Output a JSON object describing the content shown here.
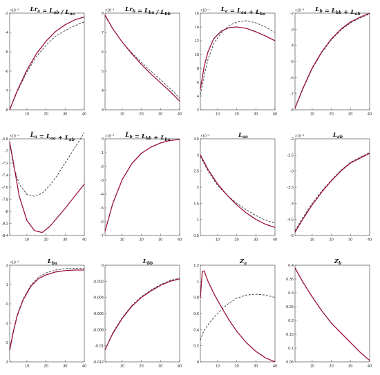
{
  "colors": {
    "solid": "#9a1237",
    "dashed": "#333333"
  },
  "chart_data": [
    {
      "type": "line",
      "title": "Lr_a = L_ab / L_aa",
      "exponent": "×10⁻³",
      "xlim": [
        1,
        40
      ],
      "ylim": [
        -8,
        -3
      ],
      "xticks": [
        "10",
        "20",
        "30",
        "40"
      ],
      "yticks": [
        "-8",
        "-7",
        "-6",
        "-5",
        "-4",
        "-3"
      ],
      "x": [
        1,
        5,
        10,
        15,
        20,
        25,
        30,
        35,
        40
      ],
      "series": [
        {
          "style": "solid",
          "values": [
            -8.0,
            -7.0,
            -5.95,
            -5.1,
            -4.45,
            -3.95,
            -3.6,
            -3.35,
            -3.2
          ]
        },
        {
          "style": "dashed",
          "values": [
            -8.0,
            -7.05,
            -6.05,
            -5.25,
            -4.65,
            -4.2,
            -3.9,
            -3.65,
            -3.45
          ]
        }
      ]
    },
    {
      "type": "line",
      "title": "Lr_b = L_ba / L_bb",
      "exponent": "×10⁻³",
      "xlim": [
        1,
        40
      ],
      "ylim": [
        3,
        8
      ],
      "xticks": [
        "10",
        "20",
        "30",
        "40"
      ],
      "yticks": [
        "3",
        "4",
        "5",
        "6",
        "7",
        "8"
      ],
      "x": [
        1,
        5,
        10,
        15,
        20,
        25,
        30,
        35,
        40
      ],
      "series": [
        {
          "style": "solid",
          "values": [
            7.9,
            7.2,
            6.5,
            5.9,
            5.35,
            4.85,
            4.4,
            3.95,
            3.45
          ]
        },
        {
          "style": "dashed",
          "values": [
            7.85,
            7.2,
            6.5,
            5.95,
            5.45,
            5.0,
            4.55,
            4.1,
            3.6
          ]
        }
      ]
    },
    {
      "type": "line",
      "title": "L_a = L_aa + L_ba",
      "exponent": "×10⁻⁴",
      "xlim": [
        1,
        40
      ],
      "ylim": [
        2,
        16
      ],
      "xticks": [
        "10",
        "20",
        "30",
        "40"
      ],
      "yticks": [
        "2",
        "4",
        "6",
        "8",
        "10",
        "12",
        "14",
        "16"
      ],
      "x": [
        1,
        3,
        5,
        8,
        12,
        16,
        20,
        25,
        30,
        35,
        40
      ],
      "series": [
        {
          "style": "solid",
          "values": [
            5.0,
            8.3,
            10.4,
            12.3,
            13.4,
            13.9,
            14.0,
            13.8,
            13.3,
            12.7,
            12.0
          ]
        },
        {
          "style": "dashed",
          "values": [
            4.2,
            7.0,
            9.3,
            11.6,
            13.2,
            14.2,
            14.7,
            14.9,
            14.6,
            14.0,
            13.2
          ]
        }
      ]
    },
    {
      "type": "line",
      "title": "L_b = L_bb + L_ab",
      "exponent": "×10⁻³",
      "xlim": [
        1,
        40
      ],
      "ylim": [
        -8,
        -2
      ],
      "xticks": [
        "10",
        "20",
        "30",
        "40"
      ],
      "yticks": [
        "-8",
        "-7",
        "-6",
        "-5",
        "-4",
        "-3",
        "-2"
      ],
      "x": [
        1,
        5,
        10,
        15,
        20,
        25,
        30,
        35,
        40
      ],
      "series": [
        {
          "style": "solid",
          "values": [
            -7.9,
            -6.7,
            -5.4,
            -4.4,
            -3.6,
            -3.0,
            -2.55,
            -2.25,
            -2.0
          ]
        },
        {
          "style": "dashed",
          "values": [
            -7.9,
            -6.75,
            -5.45,
            -4.45,
            -3.65,
            -3.05,
            -2.6,
            -2.3,
            -2.05
          ]
        }
      ]
    },
    {
      "type": "line",
      "title": "L̃_a = L_aa + L_ab",
      "exponent": "×10⁻⁴",
      "xlim": [
        1,
        40
      ],
      "ylim": [
        -8.4,
        -6.8
      ],
      "xticks": [
        "10",
        "20",
        "30",
        "40"
      ],
      "yticks": [
        "-8.4",
        "-8.2",
        "-8",
        "-7.8",
        "-7.6",
        "-7.4",
        "-7.2",
        "-7",
        "-6.8"
      ],
      "x": [
        1,
        3,
        6,
        10,
        14,
        18,
        22,
        26,
        30,
        35,
        40
      ],
      "series": [
        {
          "style": "solid",
          "values": [
            -6.85,
            -7.2,
            -7.75,
            -8.15,
            -8.32,
            -8.35,
            -8.25,
            -8.1,
            -7.95,
            -7.75,
            -7.55
          ]
        },
        {
          "style": "dashed",
          "values": [
            -6.85,
            -7.25,
            -7.55,
            -7.72,
            -7.75,
            -7.7,
            -7.57,
            -7.4,
            -7.2,
            -6.95,
            -6.7
          ]
        }
      ]
    },
    {
      "type": "line",
      "title": "L̃_b = L_bb + L_ba",
      "exponent": "×10⁻³",
      "xlim": [
        1,
        40
      ],
      "ylim": [
        -7,
        0
      ],
      "xticks": [
        "10",
        "20",
        "30",
        "40"
      ],
      "yticks": [
        "-7",
        "-6",
        "-5",
        "-4",
        "-3",
        "-2",
        "-1",
        "0"
      ],
      "x": [
        1,
        5,
        10,
        15,
        20,
        25,
        30,
        35,
        40
      ],
      "series": [
        {
          "style": "solid",
          "values": [
            -6.7,
            -4.7,
            -2.95,
            -1.8,
            -1.05,
            -0.6,
            -0.3,
            -0.12,
            -0.05
          ]
        },
        {
          "style": "dashed",
          "values": [
            -6.7,
            -4.7,
            -2.95,
            -1.8,
            -1.05,
            -0.6,
            -0.3,
            -0.12,
            -0.05
          ]
        }
      ]
    },
    {
      "type": "line",
      "title": "L_aa",
      "exponent": "×10⁻³",
      "xlim": [
        1,
        40
      ],
      "ylim": [
        0.5,
        3.5
      ],
      "xticks": [
        "10",
        "20",
        "30",
        "40"
      ],
      "yticks": [
        "0.5",
        "1",
        "1.5",
        "2",
        "2.5",
        "3",
        "3.5"
      ],
      "x": [
        1,
        5,
        10,
        15,
        20,
        25,
        30,
        35,
        40
      ],
      "series": [
        {
          "style": "solid",
          "values": [
            3.0,
            2.55,
            2.1,
            1.75,
            1.45,
            1.2,
            1.0,
            0.85,
            0.75
          ]
        },
        {
          "style": "dashed",
          "values": [
            2.95,
            2.5,
            2.05,
            1.75,
            1.5,
            1.3,
            1.12,
            0.98,
            0.88
          ]
        }
      ]
    },
    {
      "type": "line",
      "title": "L_ab",
      "exponent": "×10⁻³",
      "xlim": [
        1,
        40
      ],
      "ylim": [
        -5,
        -2
      ],
      "xticks": [
        "10",
        "20",
        "30",
        "40"
      ],
      "yticks": [
        "-5",
        "-4.5",
        "-4",
        "-3.5",
        "-3",
        "-2.5",
        "-2"
      ],
      "x": [
        1,
        5,
        10,
        15,
        20,
        25,
        30,
        35,
        40
      ],
      "series": [
        {
          "style": "solid",
          "values": [
            -4.9,
            -4.5,
            -4.05,
            -3.65,
            -3.3,
            -3.0,
            -2.75,
            -2.6,
            -2.45
          ]
        },
        {
          "style": "dashed",
          "values": [
            -4.85,
            -4.45,
            -4.0,
            -3.62,
            -3.28,
            -2.98,
            -2.73,
            -2.57,
            -2.42
          ]
        }
      ]
    },
    {
      "type": "line",
      "title": "L_ba",
      "exponent": "×10⁻³",
      "xlim": [
        1,
        40
      ],
      "ylim": [
        -3,
        2
      ],
      "xticks": [
        "10",
        "20",
        "30",
        "40"
      ],
      "yticks": [
        "-3",
        "-2",
        "-1",
        "0",
        "1",
        "2"
      ],
      "x": [
        1,
        3,
        5,
        8,
        12,
        16,
        20,
        25,
        30,
        35,
        40
      ],
      "series": [
        {
          "style": "solid",
          "values": [
            -2.4,
            -1.4,
            -0.6,
            0.2,
            0.9,
            1.3,
            1.5,
            1.65,
            1.72,
            1.75,
            1.75
          ]
        },
        {
          "style": "dashed",
          "values": [
            -2.3,
            -1.35,
            -0.55,
            0.25,
            0.95,
            1.38,
            1.6,
            1.75,
            1.82,
            1.84,
            1.84
          ]
        }
      ]
    },
    {
      "type": "line",
      "title": "L_bb",
      "xlim": [
        1,
        40
      ],
      "ylim": [
        -0.012,
        0
      ],
      "xticks": [
        "10",
        "20",
        "30",
        "40"
      ],
      "yticks": [
        "-0.012",
        "-0.01",
        "-0.008",
        "-0.006",
        "-0.004",
        "-0.002",
        "0"
      ],
      "x": [
        1,
        5,
        10,
        15,
        20,
        25,
        30,
        35,
        40
      ],
      "series": [
        {
          "style": "solid",
          "values": [
            -0.0105,
            -0.0085,
            -0.0066,
            -0.0051,
            -0.004,
            -0.0032,
            -0.0025,
            -0.002,
            -0.0017
          ]
        },
        {
          "style": "dashed",
          "values": [
            -0.0105,
            -0.0084,
            -0.0065,
            -0.005,
            -0.0039,
            -0.0031,
            -0.0024,
            -0.0019,
            -0.0016
          ]
        }
      ]
    },
    {
      "type": "line",
      "title": "Z_a",
      "xlim": [
        1,
        40
      ],
      "ylim": [
        0,
        1.2
      ],
      "xticks": [
        "10",
        "20",
        "30",
        "40"
      ],
      "yticks": [
        "0",
        "0.2",
        "0.4",
        "0.6",
        "0.8",
        "1",
        "1.2"
      ],
      "x": [
        1,
        2,
        3,
        5,
        8,
        12,
        16,
        20,
        25,
        30,
        35,
        40
      ],
      "series": [
        {
          "style": "solid",
          "values": [
            0.8,
            1.12,
            1.13,
            1.0,
            0.85,
            0.68,
            0.52,
            0.38,
            0.24,
            0.13,
            0.05,
            0.0
          ]
        },
        {
          "style": "dashed",
          "values": [
            0.27,
            0.34,
            0.39,
            0.46,
            0.55,
            0.65,
            0.73,
            0.79,
            0.83,
            0.84,
            0.83,
            0.8
          ]
        }
      ]
    },
    {
      "type": "line",
      "title": "Z_b",
      "xlim": [
        1,
        40
      ],
      "ylim": [
        0.05,
        0.4
      ],
      "xticks": [
        "10",
        "20",
        "30",
        "40"
      ],
      "yticks": [
        "0.05",
        "0.1",
        "0.15",
        "0.2",
        "0.25",
        "0.3",
        "0.35",
        "0.4"
      ],
      "x": [
        1,
        5,
        10,
        15,
        20,
        25,
        30,
        35,
        40
      ],
      "series": [
        {
          "style": "solid",
          "values": [
            0.39,
            0.34,
            0.285,
            0.235,
            0.19,
            0.155,
            0.12,
            0.085,
            0.055
          ]
        },
        {
          "style": "dashed",
          "values": [
            0.39,
            0.34,
            0.285,
            0.235,
            0.19,
            0.155,
            0.12,
            0.085,
            0.055
          ]
        }
      ]
    }
  ]
}
